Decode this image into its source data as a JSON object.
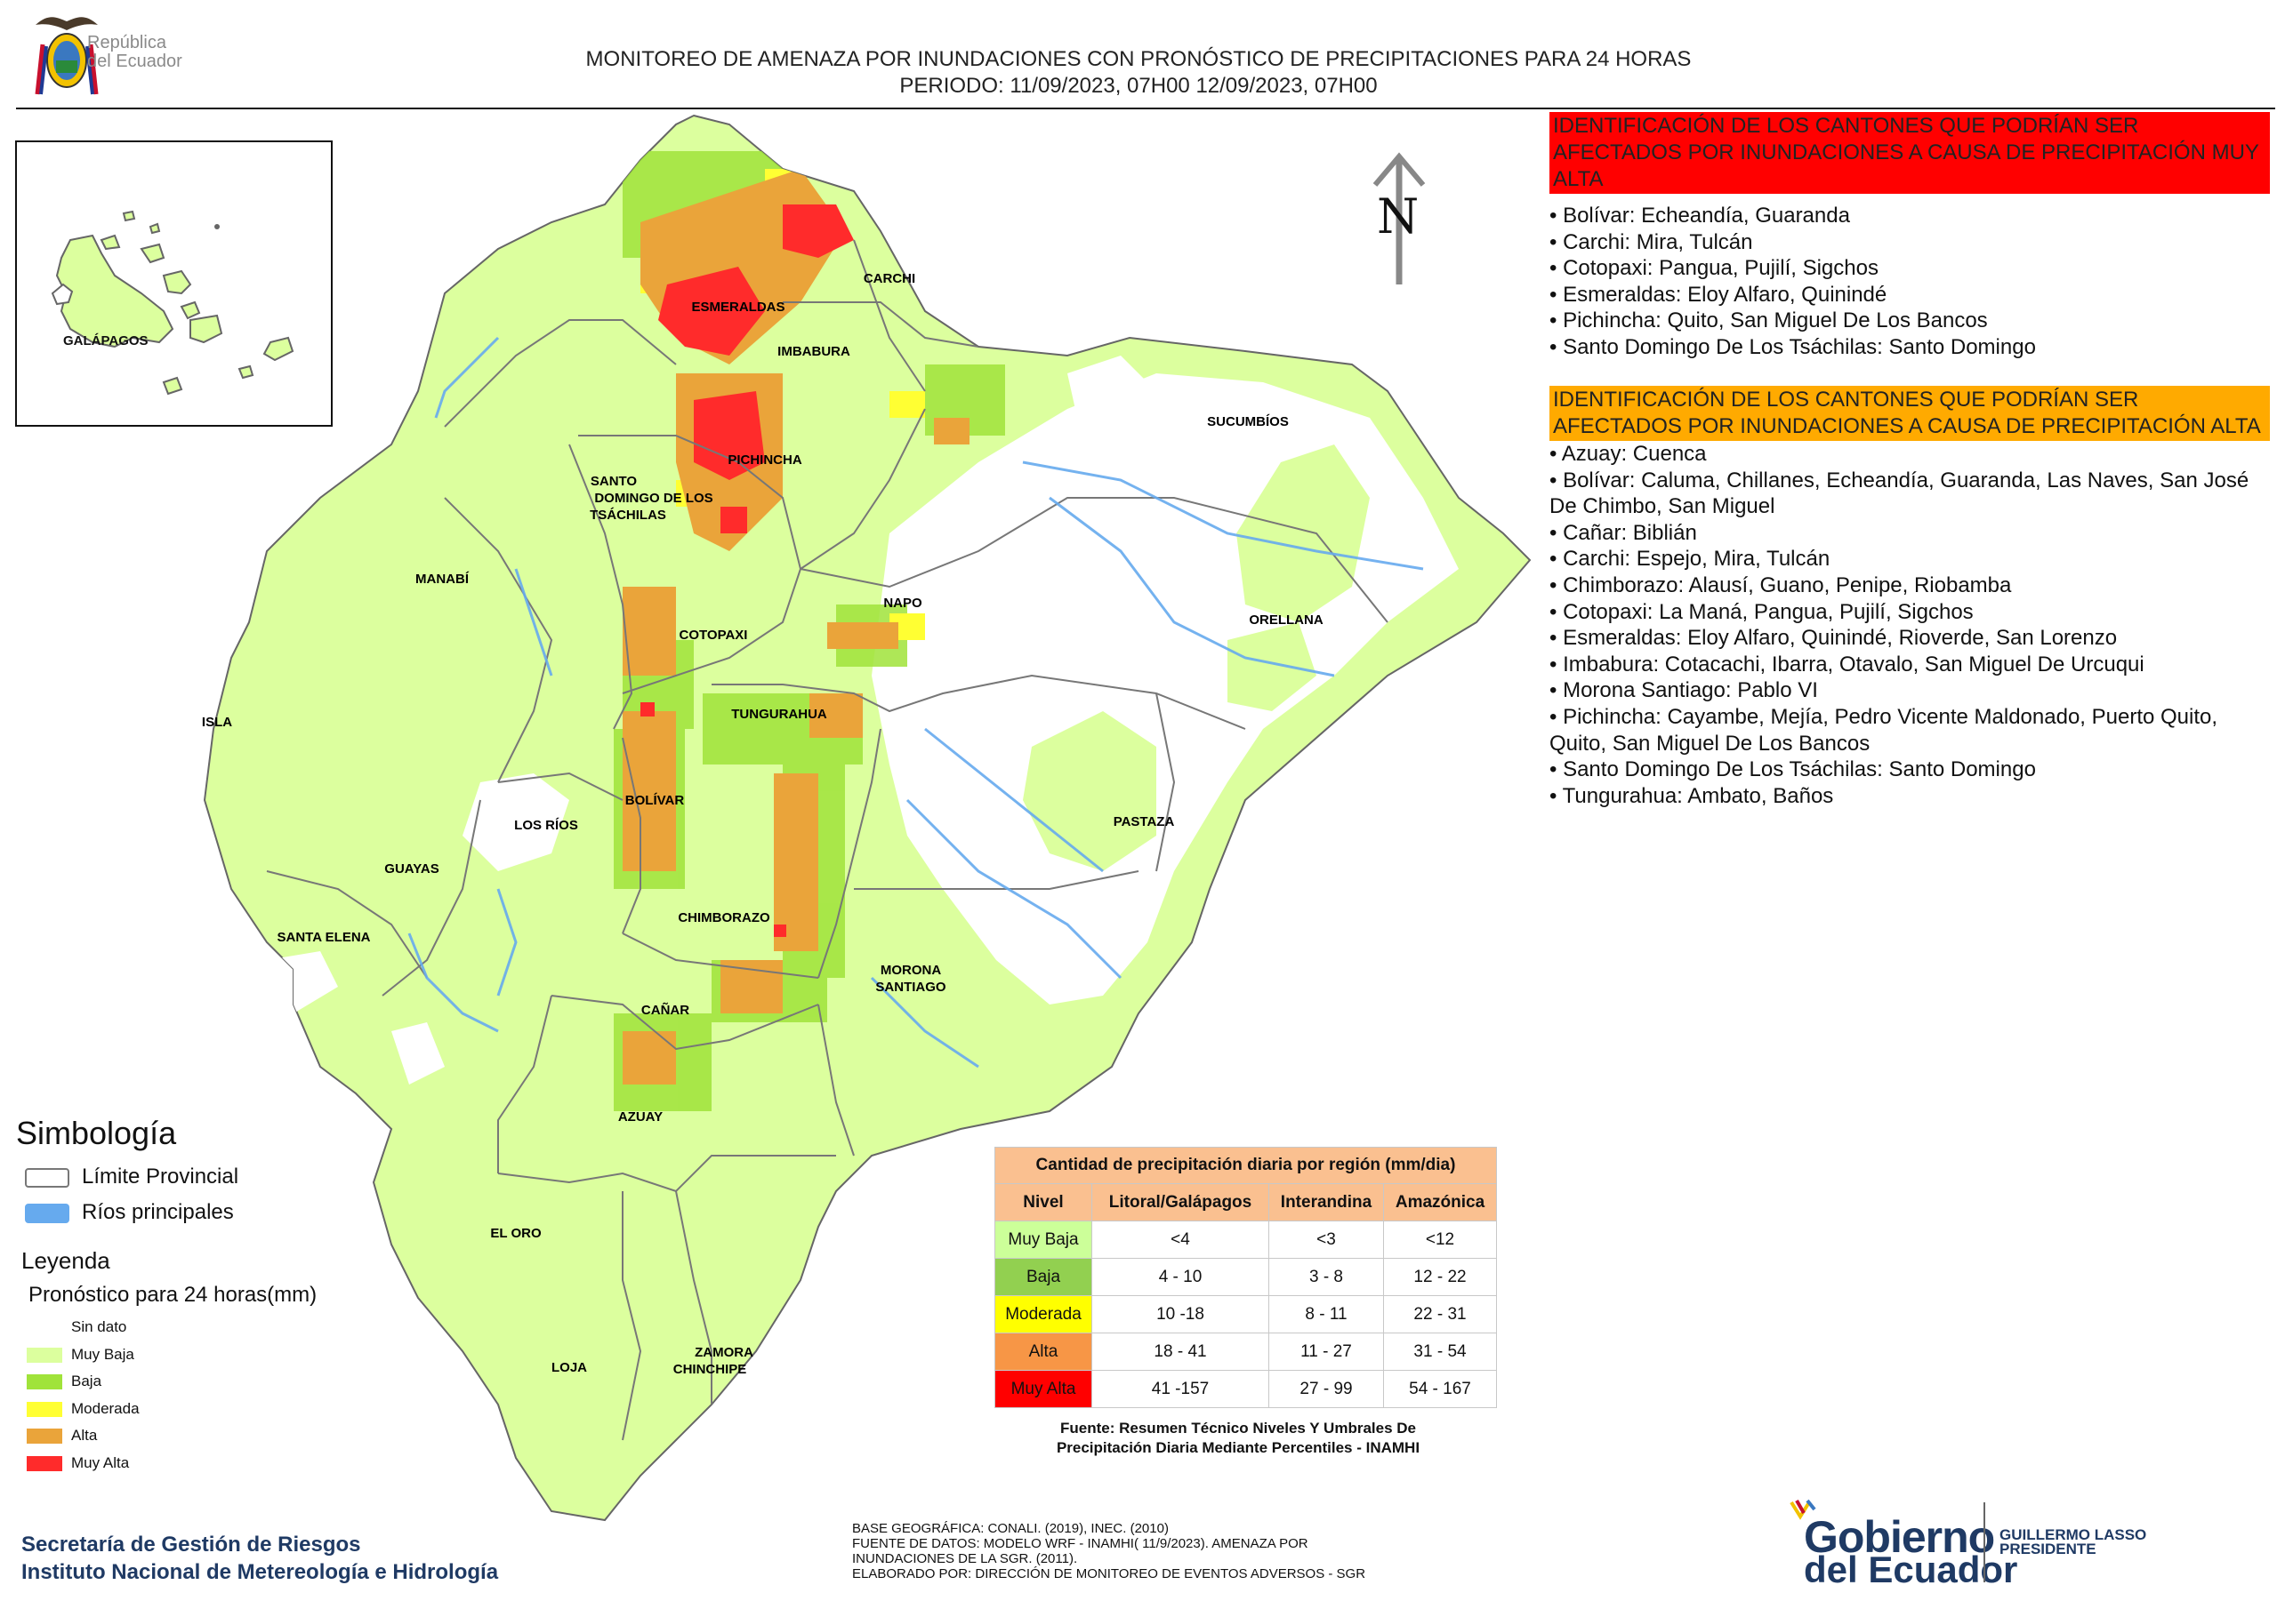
{
  "header": {
    "title_line1": "MONITOREO DE AMENAZA POR INUNDACIONES  CON PRONÓSTICO DE  PRECIPITACIONES PARA 24 HORAS",
    "title_line2": "PERIODO: 11/09/2023, 07H00 12/09/2023, 07H00"
  },
  "logo": {
    "line1": "República",
    "line2": "del Ecuador"
  },
  "north": {
    "letter": "N"
  },
  "map_labels": {
    "galapagos": "GALÁPAGOS",
    "esmeraldas": "ESMERALDAS",
    "carchi": "CARCHI",
    "imbabura": "IMBABURA",
    "sucumbios": "SUCUMBÍOS",
    "pichincha": "PICHINCHA",
    "santo_domingo_1": "SANTO",
    "santo_domingo_2": "DOMINGO DE LOS",
    "santo_domingo_3": "TSÁCHILAS",
    "manabi": "MANABÍ",
    "napo": "NAPO",
    "orellana": "ORELLANA",
    "cotopaxi": "COTOPAXI",
    "isla": "ISLA",
    "tungurahua": "TUNGURAHUA",
    "bolivar": "BOLÍVAR",
    "los_rios": "LOS RÍOS",
    "pastaza": "PASTAZA",
    "guayas": "GUAYAS",
    "chimborazo": "CHIMBORAZO",
    "santa_elena": "SANTA ELENA",
    "morona_1": "MORONA",
    "morona_2": "SANTIAGO",
    "canar": "CAÑAR",
    "azuay": "AZUAY",
    "el_oro": "EL ORO",
    "zamora_1": "ZAMORA",
    "zamora_2": "CHINCHIPE",
    "loja": "LOJA"
  },
  "panel_muy_alta": {
    "heading": "IDENTIFICACIÓN DE LOS CANTONES QUE PODRÍAN SER AFECTADOS POR INUNDACIONES  A CAUSA DE PRECIPITACIÓN MUY ALTA",
    "items": [
      "• Bolívar: Echeandía, Guaranda",
      "• Carchi: Mira, Tulcán",
      "• Cotopaxi: Pangua, Pujilí, Sigchos",
      "• Esmeraldas: Eloy Alfaro, Quinindé",
      "• Pichincha: Quito, San Miguel De Los Bancos",
      "• Santo Domingo De Los Tsáchilas: Santo Domingo"
    ]
  },
  "panel_alta": {
    "heading": "IDENTIFICACIÓN DE LOS CANTONES QUE  PODRÍAN SER AFECTADOS POR INUNDACIONES  A CAUSA DE PRECIPITACIÓN ALTA",
    "items": [
      "• Azuay: Cuenca",
      "• Bolívar: Caluma, Chillanes, Echeandía, Guaranda, Las Naves, San José De Chimbo, San Miguel",
      "• Cañar: Biblián",
      "• Carchi: Espejo, Mira, Tulcán",
      "• Chimborazo: Alausí, Guano, Penipe, Riobamba",
      "• Cotopaxi: La Maná, Pangua, Pujilí, Sigchos",
      "• Esmeraldas: Eloy Alfaro, Quinindé, Rioverde, San Lorenzo",
      "• Imbabura: Cotacachi, Ibarra, Otavalo, San Miguel De Urcuqui",
      "• Morona Santiago: Pablo VI",
      "• Pichincha: Cayambe, Mejía, Pedro Vicente Maldonado, Puerto Quito, Quito, San Miguel De Los Bancos",
      "• Santo Domingo De Los Tsáchilas: Santo Domingo",
      "• Tungurahua: Ambato, Baños"
    ]
  },
  "simbologia": {
    "title": "Simbología",
    "limite": "Límite Provincial",
    "rios": "Ríos principales"
  },
  "leyenda": {
    "title": "Leyenda",
    "subtitle": "Pronóstico para 24 horas(mm)",
    "items": [
      {
        "label": "Sin dato",
        "color": "#ffffff"
      },
      {
        "label": "Muy Baja",
        "color": "#dcff9e"
      },
      {
        "label": "Baja",
        "color": "#a0e33a"
      },
      {
        "label": "Moderada",
        "color": "#ffff33"
      },
      {
        "label": "Alta",
        "color": "#eaa43a"
      },
      {
        "label": "Muy Alta",
        "color": "#ff2b2b"
      }
    ]
  },
  "table": {
    "title": "Cantidad de precipitación diaria por región (mm/dia)",
    "headers": [
      "Nivel",
      "Litoral/Galápagos",
      "Interandina",
      "Amazónica"
    ],
    "rows": [
      {
        "nivel": "Muy Baja",
        "color": "#ccff99",
        "litoral": "<4",
        "interandina": "<3",
        "amazonica": "<12"
      },
      {
        "nivel": "Baja",
        "color": "#92d050",
        "litoral": "4 - 10",
        "interandina": "3 - 8",
        "amazonica": "12 - 22"
      },
      {
        "nivel": "Moderada",
        "color": "#ffff00",
        "litoral": "10 -18",
        "interandina": "8 - 11",
        "amazonica": "22 - 31"
      },
      {
        "nivel": "Alta",
        "color": "#f79646",
        "litoral": "18 - 41",
        "interandina": "11 - 27",
        "amazonica": "31 - 54"
      },
      {
        "nivel": "Muy Alta",
        "color": "#ff0000",
        "litoral": "41 -157",
        "interandina": "27 - 99",
        "amazonica": "54 - 167"
      }
    ],
    "source_line1": "Fuente: Resumen Técnico Niveles Y Umbrales De",
    "source_line2": "Precipitación Diaria Mediante Percentiles - INAMHI"
  },
  "footer": {
    "org_line1": "Secretaría de Gestión de Riesgos",
    "org_line2": "Instituto Nacional de Metereología e Hidrología",
    "credits": [
      "BASE GEOGRÁFICA: CONALI. (2019), INEC. (2010)",
      "FUENTE DE DATOS: MODELO WRF - INAMHI( 11/9/2023).  AMENAZA POR",
      "INUNDACIONES DE LA SGR. (2011).",
      "ELABORADO POR: DIRECCIÓN DE MONITOREO DE EVENTOS ADVERSOS - SGR"
    ],
    "gov_name_1": "Gobierno",
    "gov_name_2": "del Ecuador",
    "president_name": "GUILLERMO LASSO",
    "president_title": "PRESIDENTE"
  },
  "colors": {
    "muy_baja": "#dcff9e",
    "baja": "#a0e33a",
    "moderada": "#ffff33",
    "alta": "#eaa43a",
    "muy_alta": "#ff2b2b",
    "rios": "#66aaee",
    "limite": "#777777"
  }
}
